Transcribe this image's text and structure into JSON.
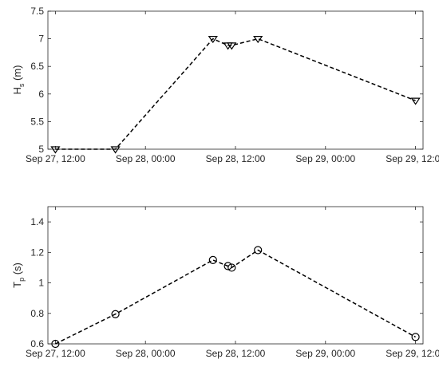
{
  "chart_data": [
    {
      "type": "line",
      "ylabel": "H",
      "ylabel_sub": "s",
      "ylabel_unit": " (m)",
      "x_ticks": [
        "Sep 27, 12:00",
        "Sep 28, 00:00",
        "Sep 28, 12:00",
        "Sep 29, 00:00",
        "Sep 29, 12:00"
      ],
      "y_ticks": [
        "5",
        "5.5",
        "6",
        "6.5",
        "7",
        "7.5"
      ],
      "xlim": [
        "2023-09-27 11:00",
        "2023-09-29 13:00"
      ],
      "ylim": [
        5,
        7.5
      ],
      "marker": "triangle-down",
      "line_style": "dashed",
      "color": "#000000",
      "x": [
        "2023-09-27 12:00",
        "2023-09-27 20:00",
        "2023-09-28 09:00",
        "2023-09-28 11:00",
        "2023-09-28 11:30",
        "2023-09-28 15:00",
        "2023-09-29 12:00"
      ],
      "values": [
        5.0,
        5.0,
        7.0,
        6.88,
        6.88,
        7.0,
        5.88
      ]
    },
    {
      "type": "line",
      "ylabel": "T",
      "ylabel_sub": "p",
      "ylabel_unit": " (s)",
      "x_ticks": [
        "Sep 27, 12:00",
        "Sep 28, 00:00",
        "Sep 28, 12:00",
        "Sep 29, 00:00",
        "Sep 29, 12:00"
      ],
      "y_ticks": [
        "0.6",
        "0.8",
        "1",
        "1.2",
        "1.4"
      ],
      "xlim": [
        "2023-09-27 11:00",
        "2023-09-29 13:00"
      ],
      "ylim": [
        0.6,
        1.5
      ],
      "marker": "circle",
      "line_style": "dashed",
      "color": "#000000",
      "x": [
        "2023-09-27 12:00",
        "2023-09-27 20:00",
        "2023-09-28 09:00",
        "2023-09-28 11:00",
        "2023-09-28 11:30",
        "2023-09-28 15:00",
        "2023-09-29 12:00"
      ],
      "values": [
        0.6,
        0.795,
        1.15,
        1.11,
        1.1,
        1.215,
        0.645
      ]
    }
  ]
}
